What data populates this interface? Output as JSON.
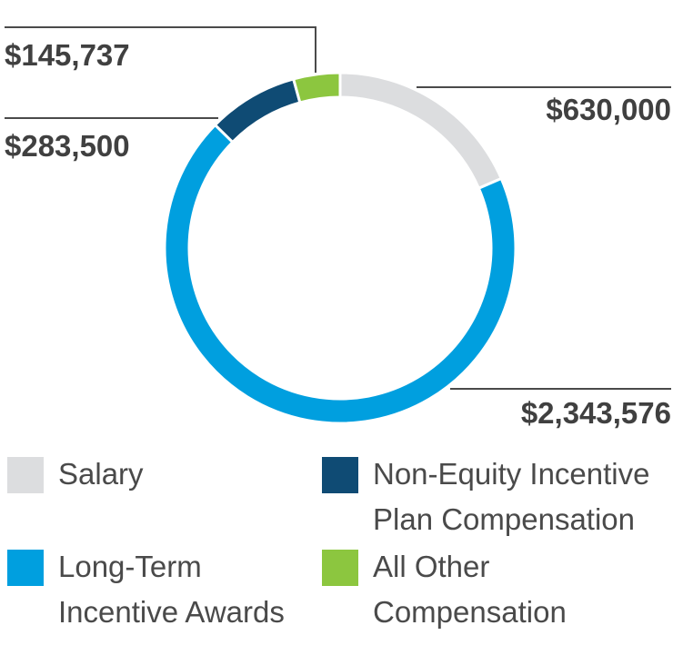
{
  "chart_data": {
    "type": "pie",
    "subtype": "donut",
    "title": "",
    "slices": [
      {
        "key": "salary",
        "label": "Salary",
        "value": 630000,
        "value_label": "$630,000",
        "color": "#dcdddf"
      },
      {
        "key": "ltia",
        "label": "Long-Term Incentive Awards",
        "value": 2343576,
        "value_label": "$2,343,576",
        "color": "#009fdf"
      },
      {
        "key": "neip",
        "label": "Non-Equity Incentive Plan Compensation",
        "value": 283500,
        "value_label": "$283,500",
        "color": "#0f4b74"
      },
      {
        "key": "other",
        "label": "All Other Compensation",
        "value": 145737,
        "value_label": "$145,737",
        "color": "#8cc63f"
      }
    ]
  },
  "legend": {
    "salary": {
      "line1": "Salary"
    },
    "neip": {
      "line1": "Non-Equity Incentive",
      "line2": "Plan Compensation"
    },
    "ltia": {
      "line1": "Long-Term",
      "line2": "Incentive Awards"
    },
    "other": {
      "line1": "All Other",
      "line2": "Compensation"
    }
  }
}
